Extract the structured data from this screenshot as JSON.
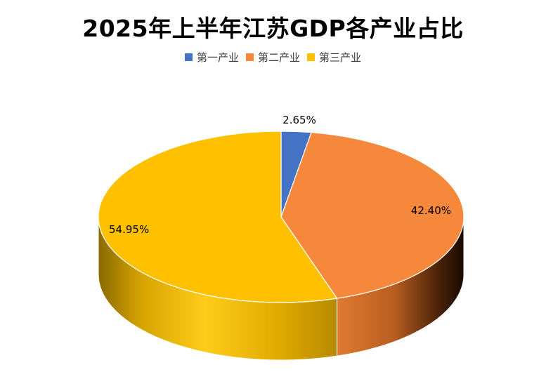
{
  "chart_data": {
    "type": "pie",
    "title": "2025年上半年江苏GDP各产业占比",
    "categories": [
      "第一产业",
      "第二产业",
      "第三产业"
    ],
    "values": [
      2.65,
      42.4,
      54.95
    ],
    "value_labels": [
      "2.65%",
      "42.40%",
      "54.95%"
    ],
    "colors": [
      "#4472C4",
      "#F5883A",
      "#FFC000"
    ],
    "legend_position": "top",
    "style": "3d"
  }
}
